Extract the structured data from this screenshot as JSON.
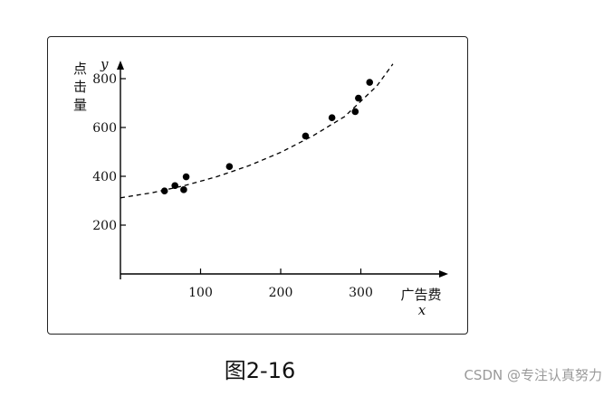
{
  "chart_data": {
    "type": "scatter",
    "title": "",
    "xlabel": "广告费",
    "xvar": "x",
    "ylabel": "点击量",
    "yvar": "y",
    "xticks": [
      100,
      200,
      300
    ],
    "yticks": [
      200,
      400,
      600,
      800
    ],
    "xlim": [
      0,
      400
    ],
    "ylim": [
      50,
      870
    ],
    "grid": false,
    "series": [
      {
        "kind": "points",
        "x": [
          55,
          68,
          79,
          82,
          136,
          231,
          264,
          293,
          297,
          311
        ],
        "y": [
          340,
          362,
          345,
          398,
          440,
          565,
          640,
          665,
          720,
          785
        ]
      },
      {
        "kind": "dashed-trend",
        "x": [
          0,
          40,
          80,
          120,
          160,
          200,
          240,
          280,
          320,
          340
        ],
        "y": [
          312,
          333,
          362,
          398,
          443,
          498,
          565,
          645,
          770,
          860
        ]
      }
    ]
  },
  "caption": "图2-16",
  "watermark": "CSDN @专注认真努力"
}
